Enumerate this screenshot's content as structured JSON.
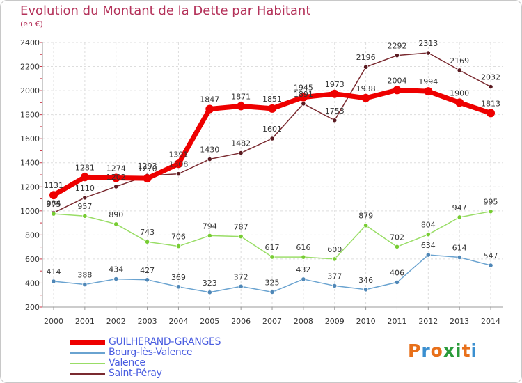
{
  "title": "Evolution du Montant de la Dette par Habitant",
  "subtitle": "(en €)",
  "logo": {
    "text": "Proxiti",
    "colors": [
      "#e8701a",
      "#3a8fd0",
      "#e8701a",
      "#2a9b3a",
      "#2a9b3a",
      "#e8701a",
      "#3a8fd0"
    ]
  },
  "chart_data": {
    "type": "line",
    "categories": [
      "2000",
      "2001",
      "2002",
      "2003",
      "2004",
      "2005",
      "2006",
      "2007",
      "2008",
      "2009",
      "2010",
      "2011",
      "2012",
      "2013",
      "2014"
    ],
    "ylim": [
      200,
      2400
    ],
    "yticks": [
      200,
      400,
      600,
      800,
      1000,
      1200,
      1400,
      1600,
      1800,
      2000,
      2200,
      2400
    ],
    "grid": true,
    "legend_position": "bottom-left",
    "series": [
      {
        "name": "GUILHERAND-GRANGES",
        "color": "#ee0000",
        "values": [
          1131,
          1281,
          1274,
          1270,
          1391,
          1847,
          1871,
          1851,
          1945,
          1973,
          1938,
          2004,
          1994,
          1900,
          1813
        ]
      },
      {
        "name": "Bourg-lès-Valence",
        "color": "#6aa3d0",
        "values": [
          414,
          388,
          434,
          427,
          369,
          323,
          372,
          325,
          432,
          377,
          346,
          406,
          634,
          614,
          547
        ]
      },
      {
        "name": "Valence",
        "color": "#99dd66",
        "values": [
          975,
          957,
          890,
          743,
          706,
          794,
          787,
          617,
          616,
          600,
          879,
          702,
          804,
          947,
          995
        ]
      },
      {
        "name": "Saint-Péray",
        "color": "#7a2a30",
        "values": [
          984,
          1110,
          1202,
          1293,
          1308,
          1430,
          1482,
          1601,
          1891,
          1753,
          2196,
          2292,
          2313,
          2169,
          2032
        ]
      }
    ]
  }
}
